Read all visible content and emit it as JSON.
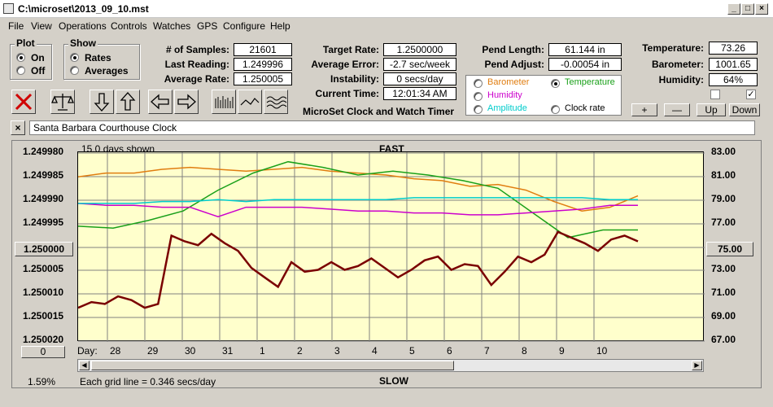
{
  "window": {
    "title": "C:\\microset\\2013_09_10.mst"
  },
  "menu": [
    "File",
    "View",
    "Operations",
    "Controls",
    "Watches",
    "GPS",
    "Configure",
    "Help"
  ],
  "plot_group": {
    "label": "Plot",
    "on": "On",
    "off": "Off",
    "selected": "On"
  },
  "show_group": {
    "label": "Show",
    "rates": "Rates",
    "averages": "Averages",
    "selected": "Rates"
  },
  "stats": {
    "samples_label": "# of Samples:",
    "samples": "21601",
    "last_reading_label": "Last Reading:",
    "last_reading": "1.249996",
    "average_rate_label": "Average Rate:",
    "average_rate": "1.250005",
    "target_rate_label": "Target Rate:",
    "target_rate": "1.2500000",
    "average_error_label": "Average Error:",
    "average_error": "-2.7 sec/week",
    "instability_label": "Instability:",
    "instability": "0 secs/day",
    "current_time_label": "Current Time:",
    "current_time": "12:01:34 AM",
    "pend_length_label": "Pend Length:",
    "pend_length": "61.144 in",
    "pend_adjust_label": "Pend Adjust:",
    "pend_adjust": "-0.00054 in",
    "temperature_label": "Temperature:",
    "temperature": "73.26",
    "barometer_label": "Barometer:",
    "barometer": "1001.65",
    "humidity_label": "Humidity:",
    "humidity": "64%"
  },
  "app_caption": "MicroSet Clock and Watch Timer",
  "sensors": {
    "barometer": "Barometer",
    "temperature": "Temperature",
    "humidity": "Humidity",
    "amplitude": "Amplitude",
    "clock_rate": "Clock rate",
    "selected": "Temperature"
  },
  "colors": {
    "barometer": "#e07d10",
    "temperature": "#1aa01a",
    "humidity": "#cc00cc",
    "amplitude": "#00cccc",
    "rate": "#7a0000"
  },
  "adjust_buttons": {
    "plus": "+",
    "minus": "—",
    "up": "Up",
    "down": "Down"
  },
  "clock_name": "Santa Barbara Courthouse Clock",
  "chart_header": {
    "days_shown": "15.0 days shown",
    "top": "FAST",
    "bottom": "SLOW",
    "grid_note": "Each grid line = 0.346 secs/day",
    "zoom": "1.59%",
    "left_button": "1.250000",
    "right_button": "75.00",
    "offset_button": "0",
    "day_label": "Day:"
  },
  "chart_data": {
    "type": "line",
    "x_ticks": [
      "28",
      "29",
      "30",
      "31",
      "1",
      "2",
      "3",
      "4",
      "5",
      "6",
      "7",
      "8",
      "9",
      "10"
    ],
    "left_ticks": [
      "1.249980",
      "1.249985",
      "1.249990",
      "1.249995",
      "1.250000",
      "1.250005",
      "1.250010",
      "1.250015",
      "1.250020"
    ],
    "right_ticks": [
      "83.00",
      "81.00",
      "79.00",
      "77.00",
      "75.00",
      "73.00",
      "71.00",
      "69.00",
      "67.00"
    ],
    "ylim_left": [
      1.24998,
      1.25002
    ],
    "ylim_right": [
      67,
      83
    ],
    "series": [
      {
        "key": "barometer",
        "values": [
          0.13,
          0.11,
          0.11,
          0.09,
          0.08,
          0.09,
          0.1,
          0.09,
          0.08,
          0.1,
          0.11,
          0.12,
          0.14,
          0.15,
          0.18,
          0.17,
          0.2,
          0.26,
          0.31,
          0.29,
          0.23
        ]
      },
      {
        "key": "temperature",
        "values": [
          0.39,
          0.4,
          0.36,
          0.31,
          0.2,
          0.11,
          0.05,
          0.08,
          0.12,
          0.1,
          0.12,
          0.15,
          0.19,
          0.32,
          0.45,
          0.41,
          0.41
        ]
      },
      {
        "key": "humidity",
        "values": [
          0.27,
          0.28,
          0.28,
          0.29,
          0.29,
          0.34,
          0.29,
          0.29,
          0.29,
          0.3,
          0.31,
          0.31,
          0.32,
          0.32,
          0.33,
          0.33,
          0.32,
          0.31,
          0.3,
          0.28,
          0.28
        ]
      },
      {
        "key": "amplitude",
        "values": [
          0.27,
          0.27,
          0.27,
          0.26,
          0.26,
          0.25,
          0.26,
          0.25,
          0.25,
          0.25,
          0.25,
          0.25,
          0.24,
          0.24,
          0.24,
          0.24,
          0.24,
          0.24,
          0.24,
          0.25,
          0.25
        ]
      },
      {
        "key": "rate",
        "values": [
          0.82,
          0.79,
          0.8,
          0.76,
          0.78,
          0.82,
          0.8,
          0.44,
          0.47,
          0.49,
          0.43,
          0.48,
          0.52,
          0.61,
          0.66,
          0.71,
          0.58,
          0.63,
          0.62,
          0.58,
          0.62,
          0.6,
          0.56,
          0.61,
          0.66,
          0.62,
          0.57,
          0.55,
          0.62,
          0.59,
          0.6,
          0.7,
          0.63,
          0.55,
          0.58,
          0.54,
          0.42,
          0.45,
          0.48,
          0.52,
          0.46,
          0.44,
          0.47
        ]
      }
    ]
  }
}
